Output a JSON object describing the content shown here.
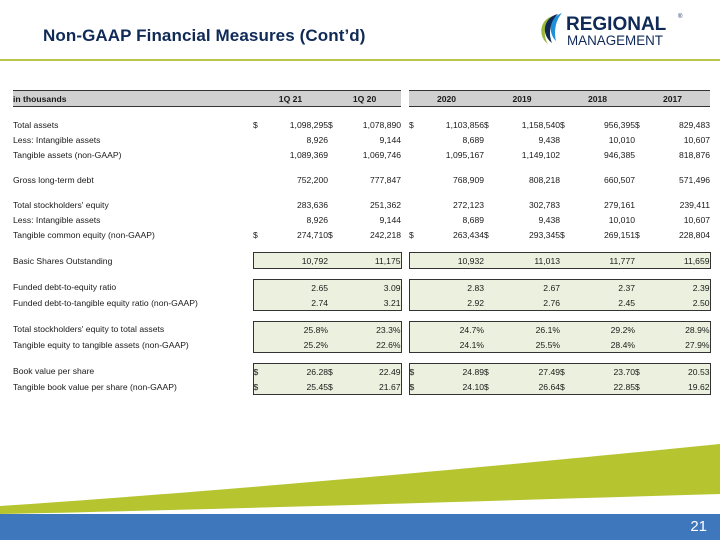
{
  "header": {
    "title": "Non-GAAP Financial Measures (Cont’d)"
  },
  "logo": {
    "line1": "REGIONAL",
    "line2": "MANAGEMENT",
    "mark": "®",
    "colors": {
      "navy": "#0f2a57",
      "green": "#9bb83a",
      "blue": "#1f8fd8"
    }
  },
  "table": {
    "unit_label": "in thousands",
    "periods": [
      "1Q 21",
      "1Q 20",
      "2020",
      "2019",
      "2018",
      "2017"
    ],
    "rows": {
      "total_assets": {
        "label": "Total assets",
        "cells": [
          [
            "$",
            "1,098,295"
          ],
          [
            "$",
            "1,078,890"
          ],
          [
            "$",
            "1,103,856"
          ],
          [
            "$",
            "1,158,540"
          ],
          [
            "$",
            "956,395"
          ],
          [
            "$",
            "829,483"
          ]
        ]
      },
      "intangible_a": {
        "label": "Less: Intangible assets",
        "cells": [
          [
            "",
            "8,926"
          ],
          [
            "",
            "9,144"
          ],
          [
            "",
            "8,689"
          ],
          [
            "",
            "9,438"
          ],
          [
            "",
            "10,010"
          ],
          [
            "",
            "10,607"
          ]
        ]
      },
      "tangible_assets": {
        "label": "Tangible assets (non-GAAP)",
        "cells": [
          [
            "",
            "1,089,369"
          ],
          [
            "",
            "1,069,746"
          ],
          [
            "",
            "1,095,167"
          ],
          [
            "",
            "1,149,102"
          ],
          [
            "",
            "946,385"
          ],
          [
            "",
            "818,876"
          ]
        ]
      },
      "gross_debt": {
        "label": "Gross long-term debt",
        "cells": [
          [
            "",
            "752,200"
          ],
          [
            "",
            "777,847"
          ],
          [
            "",
            "768,909"
          ],
          [
            "",
            "808,218"
          ],
          [
            "",
            "660,507"
          ],
          [
            "",
            "571,496"
          ]
        ]
      },
      "equity": {
        "label": "Total stockholders' equity",
        "cells": [
          [
            "",
            "283,636"
          ],
          [
            "",
            "251,362"
          ],
          [
            "",
            "272,123"
          ],
          [
            "",
            "302,783"
          ],
          [
            "",
            "279,161"
          ],
          [
            "",
            "239,411"
          ]
        ]
      },
      "intangible_b": {
        "label": "Less: Intangible assets",
        "cells": [
          [
            "",
            "8,926"
          ],
          [
            "",
            "9,144"
          ],
          [
            "",
            "8,689"
          ],
          [
            "",
            "9,438"
          ],
          [
            "",
            "10,010"
          ],
          [
            "",
            "10,607"
          ]
        ]
      },
      "tangible_equity": {
        "label": "Tangible common equity (non-GAAP)",
        "cells": [
          [
            "$",
            "274,710"
          ],
          [
            "$",
            "242,218"
          ],
          [
            "$",
            "263,434"
          ],
          [
            "$",
            "293,345"
          ],
          [
            "$",
            "269,151"
          ],
          [
            "$",
            "228,804"
          ]
        ]
      },
      "shares": {
        "label": "Basic Shares Outstanding",
        "cells": [
          [
            "",
            "10,792"
          ],
          [
            "",
            "11,175"
          ],
          [
            "",
            "10,932"
          ],
          [
            "",
            "11,013"
          ],
          [
            "",
            "11,777"
          ],
          [
            "",
            "11,659"
          ]
        ]
      },
      "debt_equity": {
        "label": "Funded debt-to-equity ratio",
        "cells": [
          [
            "",
            "2.65"
          ],
          [
            "",
            "3.09"
          ],
          [
            "",
            "2.83"
          ],
          [
            "",
            "2.67"
          ],
          [
            "",
            "2.37"
          ],
          [
            "",
            "2.39"
          ]
        ]
      },
      "debt_tangible": {
        "label": "Funded debt-to-tangible equity ratio (non-GAAP)",
        "cells": [
          [
            "",
            "2.74"
          ],
          [
            "",
            "3.21"
          ],
          [
            "",
            "2.92"
          ],
          [
            "",
            "2.76"
          ],
          [
            "",
            "2.45"
          ],
          [
            "",
            "2.50"
          ]
        ]
      },
      "equity_assets": {
        "label": "Total stockholders' equity to total assets",
        "cells": [
          [
            "",
            "25.8%"
          ],
          [
            "",
            "23.3%"
          ],
          [
            "",
            "24.7%"
          ],
          [
            "",
            "26.1%"
          ],
          [
            "",
            "29.2%"
          ],
          [
            "",
            "28.9%"
          ]
        ]
      },
      "tangible_ratio": {
        "label": "Tangible equity to tangible assets (non-GAAP)",
        "cells": [
          [
            "",
            "25.2%"
          ],
          [
            "",
            "22.6%"
          ],
          [
            "",
            "24.1%"
          ],
          [
            "",
            "25.5%"
          ],
          [
            "",
            "28.4%"
          ],
          [
            "",
            "27.9%"
          ]
        ]
      },
      "bvps": {
        "label": "Book value per share",
        "cells": [
          [
            "$",
            "26.28"
          ],
          [
            "$",
            "22.49"
          ],
          [
            "$",
            "24.89"
          ],
          [
            "$",
            "27.49"
          ],
          [
            "$",
            "23.70"
          ],
          [
            "$",
            "20.53"
          ]
        ]
      },
      "tbvps": {
        "label": "Tangible book value per share (non-GAAP)",
        "cells": [
          [
            "$",
            "25.45"
          ],
          [
            "$",
            "21.67"
          ],
          [
            "$",
            "24.10"
          ],
          [
            "$",
            "26.64"
          ],
          [
            "$",
            "22.85"
          ],
          [
            "$",
            "19.62"
          ]
        ]
      }
    }
  },
  "footer": {
    "page_number": "21",
    "colors": {
      "green": "#b5c42f",
      "blue": "#3f77bd"
    }
  }
}
